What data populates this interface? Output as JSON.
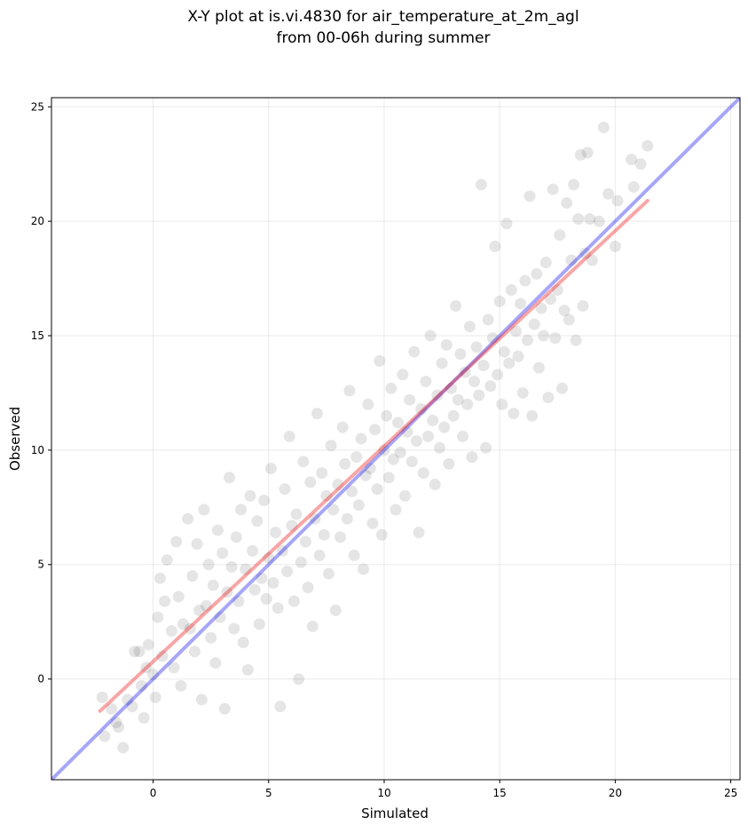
{
  "chart_data": {
    "type": "scatter",
    "title": "X-Y plot at is.vi.4830 for air_temperature_at_2m_agl",
    "subtitle": "from 00-06h during summer",
    "xlabel": "Simulated",
    "ylabel": "Observed",
    "xlim": [
      -4.4,
      25.4
    ],
    "ylim": [
      -4.4,
      25.4
    ],
    "x_ticks": [
      0,
      5,
      10,
      15,
      20,
      25
    ],
    "y_ticks": [
      0,
      5,
      10,
      15,
      20,
      25
    ],
    "grid": true,
    "point_color": "#000000",
    "point_opacity": 0.1,
    "reference_line": {
      "name": "1:1",
      "color": "#0000ee",
      "points": [
        [
          -4.4,
          -4.4
        ],
        [
          25.4,
          25.4
        ]
      ]
    },
    "regression_line": {
      "name": "fit",
      "color": "#ee0000",
      "points": [
        [
          -2.3,
          -1.4
        ],
        [
          21.4,
          20.9
        ]
      ]
    },
    "points": [
      [
        -2.2,
        -0.8
      ],
      [
        -2.1,
        -2.5
      ],
      [
        -1.8,
        -1.3
      ],
      [
        -1.6,
        -1.9
      ],
      [
        -1.5,
        -2.1
      ],
      [
        -1.3,
        -3.0
      ],
      [
        -1.1,
        -0.9
      ],
      [
        -0.9,
        -1.2
      ],
      [
        -0.8,
        1.2
      ],
      [
        -0.6,
        1.2
      ],
      [
        -0.5,
        -0.3
      ],
      [
        -0.4,
        -1.7
      ],
      [
        -0.3,
        0.5
      ],
      [
        -0.2,
        1.5
      ],
      [
        0.0,
        0.2
      ],
      [
        0.1,
        -0.8
      ],
      [
        0.2,
        2.7
      ],
      [
        0.3,
        4.4
      ],
      [
        0.4,
        1.0
      ],
      [
        0.5,
        3.4
      ],
      [
        0.6,
        5.2
      ],
      [
        0.8,
        2.1
      ],
      [
        0.9,
        0.5
      ],
      [
        1.0,
        6.0
      ],
      [
        1.1,
        3.6
      ],
      [
        1.2,
        -0.3
      ],
      [
        1.3,
        2.4
      ],
      [
        1.5,
        7.0
      ],
      [
        1.6,
        2.2
      ],
      [
        1.7,
        4.5
      ],
      [
        1.8,
        1.2
      ],
      [
        1.9,
        5.9
      ],
      [
        2.0,
        3.0
      ],
      [
        2.1,
        -0.9
      ],
      [
        2.2,
        7.4
      ],
      [
        2.3,
        3.2
      ],
      [
        2.4,
        5.0
      ],
      [
        2.5,
        1.8
      ],
      [
        2.6,
        4.1
      ],
      [
        2.7,
        0.7
      ],
      [
        2.8,
        6.5
      ],
      [
        2.9,
        2.7
      ],
      [
        3.0,
        5.5
      ],
      [
        3.1,
        -1.3
      ],
      [
        3.2,
        3.8
      ],
      [
        3.3,
        8.8
      ],
      [
        3.4,
        4.9
      ],
      [
        3.5,
        2.2
      ],
      [
        3.6,
        6.2
      ],
      [
        3.7,
        3.4
      ],
      [
        3.8,
        7.4
      ],
      [
        3.9,
        1.6
      ],
      [
        4.0,
        4.8
      ],
      [
        4.1,
        0.4
      ],
      [
        4.2,
        8.0
      ],
      [
        4.3,
        5.6
      ],
      [
        4.4,
        3.9
      ],
      [
        4.5,
        6.9
      ],
      [
        4.6,
        2.4
      ],
      [
        4.7,
        4.4
      ],
      [
        4.8,
        7.8
      ],
      [
        4.9,
        3.5
      ],
      [
        5.0,
        5.3
      ],
      [
        5.1,
        9.2
      ],
      [
        5.2,
        4.2
      ],
      [
        5.3,
        6.4
      ],
      [
        5.4,
        3.1
      ],
      [
        5.5,
        -1.2
      ],
      [
        5.6,
        5.6
      ],
      [
        5.7,
        8.3
      ],
      [
        5.8,
        4.7
      ],
      [
        5.9,
        10.6
      ],
      [
        6.0,
        6.7
      ],
      [
        6.1,
        3.4
      ],
      [
        6.2,
        7.2
      ],
      [
        6.3,
        0.0
      ],
      [
        6.4,
        5.1
      ],
      [
        6.5,
        9.5
      ],
      [
        6.6,
        6.0
      ],
      [
        6.7,
        4.0
      ],
      [
        6.8,
        8.6
      ],
      [
        6.9,
        2.3
      ],
      [
        7.0,
        7.0
      ],
      [
        7.1,
        11.6
      ],
      [
        7.2,
        5.4
      ],
      [
        7.3,
        9.0
      ],
      [
        7.4,
        6.3
      ],
      [
        7.5,
        8.0
      ],
      [
        7.6,
        4.6
      ],
      [
        7.7,
        10.2
      ],
      [
        7.8,
        7.4
      ],
      [
        7.9,
        3.0
      ],
      [
        8.0,
        8.5
      ],
      [
        8.1,
        6.2
      ],
      [
        8.2,
        11.0
      ],
      [
        8.3,
        9.4
      ],
      [
        8.4,
        7.0
      ],
      [
        8.5,
        12.6
      ],
      [
        8.6,
        8.2
      ],
      [
        8.7,
        5.4
      ],
      [
        8.8,
        9.7
      ],
      [
        8.9,
        7.6
      ],
      [
        9.0,
        10.5
      ],
      [
        9.1,
        4.8
      ],
      [
        9.2,
        8.9
      ],
      [
        9.3,
        12.0
      ],
      [
        9.4,
        9.2
      ],
      [
        9.5,
        6.8
      ],
      [
        9.6,
        10.9
      ],
      [
        9.7,
        8.3
      ],
      [
        9.8,
        13.9
      ],
      [
        9.9,
        6.3
      ],
      [
        10.0,
        10.0
      ],
      [
        10.1,
        11.5
      ],
      [
        10.2,
        8.8
      ],
      [
        10.3,
        12.7
      ],
      [
        10.4,
        9.6
      ],
      [
        10.5,
        7.4
      ],
      [
        10.6,
        11.2
      ],
      [
        10.7,
        9.9
      ],
      [
        10.8,
        13.3
      ],
      [
        10.9,
        8.0
      ],
      [
        11.0,
        10.8
      ],
      [
        11.1,
        12.2
      ],
      [
        11.2,
        9.5
      ],
      [
        11.3,
        14.3
      ],
      [
        11.4,
        10.4
      ],
      [
        11.5,
        6.4
      ],
      [
        11.6,
        11.8
      ],
      [
        11.7,
        9.0
      ],
      [
        11.8,
        13.0
      ],
      [
        11.9,
        10.6
      ],
      [
        12.0,
        15.0
      ],
      [
        12.1,
        11.3
      ],
      [
        12.2,
        8.5
      ],
      [
        12.3,
        12.4
      ],
      [
        12.4,
        10.1
      ],
      [
        12.5,
        13.8
      ],
      [
        12.6,
        11.0
      ],
      [
        12.7,
        14.6
      ],
      [
        12.8,
        9.4
      ],
      [
        12.9,
        12.7
      ],
      [
        13.0,
        11.5
      ],
      [
        13.1,
        16.3
      ],
      [
        13.2,
        12.2
      ],
      [
        13.3,
        14.2
      ],
      [
        13.4,
        10.6
      ],
      [
        13.5,
        13.4
      ],
      [
        13.6,
        12.0
      ],
      [
        13.7,
        15.4
      ],
      [
        13.8,
        9.7
      ],
      [
        13.9,
        13.0
      ],
      [
        14.0,
        14.5
      ],
      [
        14.1,
        12.4
      ],
      [
        14.2,
        21.6
      ],
      [
        14.3,
        13.7
      ],
      [
        14.4,
        10.1
      ],
      [
        14.5,
        15.7
      ],
      [
        14.6,
        12.8
      ],
      [
        14.7,
        14.9
      ],
      [
        14.8,
        18.9
      ],
      [
        14.9,
        13.3
      ],
      [
        15.0,
        16.5
      ],
      [
        15.1,
        12.0
      ],
      [
        15.2,
        14.3
      ],
      [
        15.3,
        19.9
      ],
      [
        15.4,
        13.8
      ],
      [
        15.5,
        17.0
      ],
      [
        15.6,
        11.6
      ],
      [
        15.7,
        15.2
      ],
      [
        15.8,
        14.1
      ],
      [
        15.9,
        16.4
      ],
      [
        16.0,
        12.5
      ],
      [
        16.1,
        17.4
      ],
      [
        16.2,
        14.8
      ],
      [
        16.3,
        21.1
      ],
      [
        16.4,
        11.5
      ],
      [
        16.5,
        15.5
      ],
      [
        16.6,
        17.7
      ],
      [
        16.7,
        13.6
      ],
      [
        16.8,
        16.2
      ],
      [
        16.9,
        15.0
      ],
      [
        17.0,
        18.2
      ],
      [
        17.1,
        12.3
      ],
      [
        17.2,
        16.6
      ],
      [
        17.3,
        21.4
      ],
      [
        17.4,
        14.9
      ],
      [
        17.5,
        17.0
      ],
      [
        17.6,
        19.4
      ],
      [
        17.7,
        12.7
      ],
      [
        17.8,
        16.1
      ],
      [
        17.9,
        20.8
      ],
      [
        18.0,
        15.7
      ],
      [
        18.1,
        18.3
      ],
      [
        18.2,
        21.6
      ],
      [
        18.3,
        14.8
      ],
      [
        18.4,
        20.1
      ],
      [
        18.5,
        22.9
      ],
      [
        18.6,
        16.3
      ],
      [
        18.7,
        18.6
      ],
      [
        18.8,
        23.0
      ],
      [
        18.9,
        20.1
      ],
      [
        19.0,
        18.3
      ],
      [
        19.3,
        20.0
      ],
      [
        19.5,
        24.1
      ],
      [
        19.7,
        21.2
      ],
      [
        20.0,
        18.9
      ],
      [
        20.1,
        20.9
      ],
      [
        20.7,
        22.7
      ],
      [
        20.8,
        21.5
      ],
      [
        21.1,
        22.5
      ],
      [
        21.4,
        23.3
      ]
    ]
  }
}
